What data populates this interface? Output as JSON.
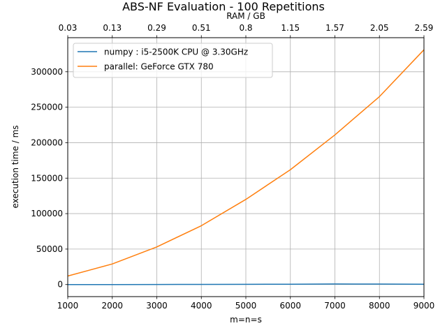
{
  "chart_data": {
    "type": "line",
    "title": "ABS-NF Evaluation - 100 Repetitions",
    "xlabel": "m=n=s",
    "ylabel": "execution time / ms",
    "top_xlabel": "RAM / GB",
    "xlim": [
      1000,
      9000
    ],
    "ylim": [
      -17000,
      348000
    ],
    "x_ticks": [
      1000,
      2000,
      3000,
      4000,
      5000,
      6000,
      7000,
      8000,
      9000
    ],
    "x_tick_labels": [
      "1000",
      "2000",
      "3000",
      "4000",
      "5000",
      "6000",
      "7000",
      "8000",
      "9000"
    ],
    "y_ticks": [
      0,
      50000,
      100000,
      150000,
      200000,
      250000,
      300000
    ],
    "y_tick_labels": [
      "0",
      "50000",
      "100000",
      "150000",
      "200000",
      "250000",
      "300000"
    ],
    "top_x_tick_labels": [
      "0.03",
      "0.13",
      "0.29",
      "0.51",
      "0.8",
      "1.15",
      "1.57",
      "2.05",
      "2.59"
    ],
    "grid": true,
    "legend_position": "top-left",
    "x": [
      1000,
      2000,
      3000,
      4000,
      5000,
      6000,
      7000,
      8000,
      9000
    ],
    "series": [
      {
        "name": "numpy : i5-2500K CPU @ 3.30GHz",
        "color": "#1f77b4",
        "values": [
          10,
          40,
          100,
          200,
          350,
          550,
          800,
          700,
          500
        ]
      },
      {
        "name": "parallel: GeForce GTX 780",
        "color": "#ff7f0e",
        "values": [
          12000,
          29000,
          53000,
          83000,
          120000,
          162000,
          211000,
          265000,
          331000
        ]
      }
    ]
  }
}
